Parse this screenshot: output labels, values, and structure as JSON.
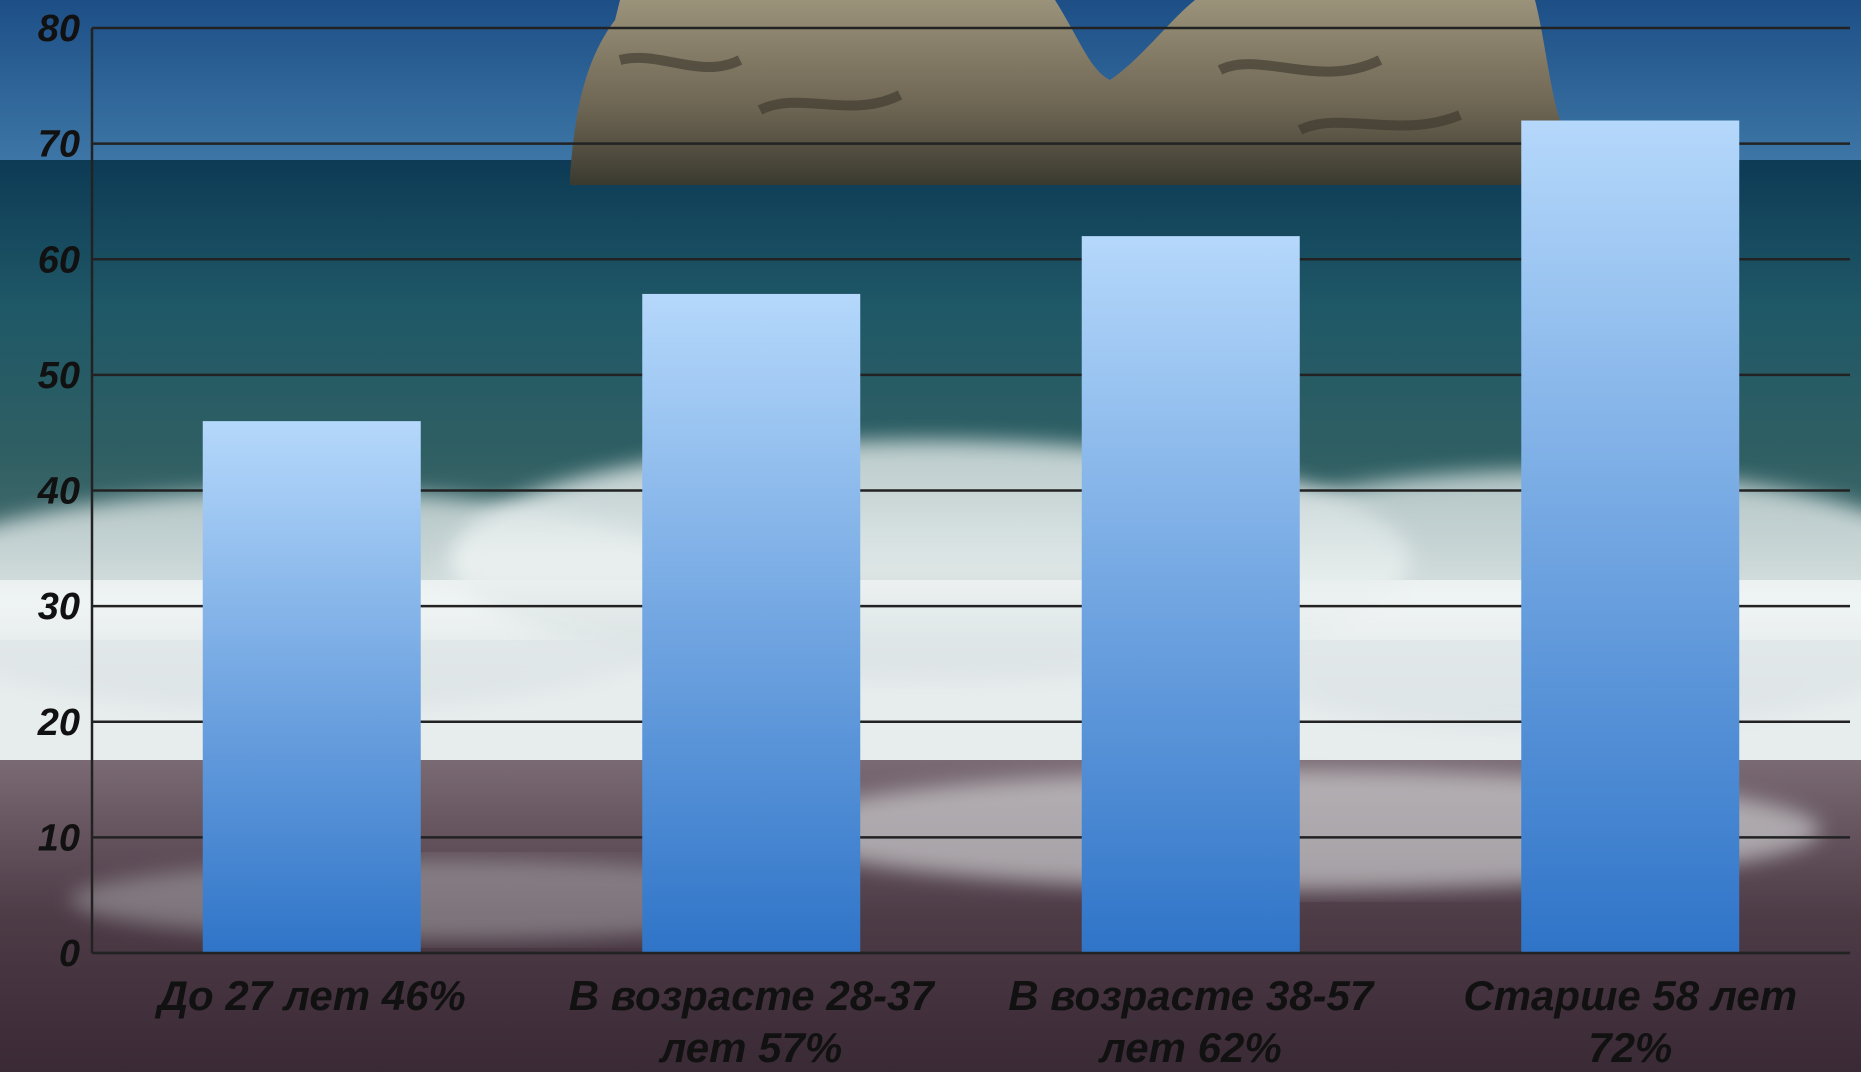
{
  "chart_data": {
    "type": "bar",
    "categories": [
      [
        "До 27 лет 46%"
      ],
      [
        "В возрасте 28-37",
        "лет 57%"
      ],
      [
        "В возрасте 38-57",
        "лет 62%"
      ],
      [
        "Старше 58 лет",
        "72%"
      ]
    ],
    "values": [
      46,
      57,
      62,
      72
    ],
    "ylim": [
      0,
      80
    ],
    "yticks": [
      "0",
      "10",
      "20",
      "30",
      "40",
      "50",
      "60",
      "70",
      "80"
    ],
    "grid": true,
    "title": "",
    "xlabel": "",
    "ylabel": "",
    "colors": {
      "bar_top": "#b5d8fb",
      "bar_bottom": "#2f74c8",
      "gridline": "#222222"
    }
  }
}
